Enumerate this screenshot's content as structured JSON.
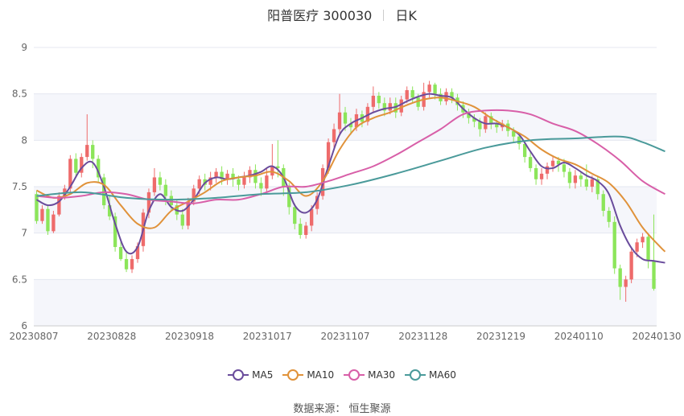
{
  "title": {
    "name": "阳普医疗 300030",
    "period": "日K"
  },
  "source": "数据来源： 恒生聚源",
  "colors": {
    "up": "#ee6b6b",
    "down": "#8ce55a",
    "MA5": "#6a4c9c",
    "MA10": "#e0923a",
    "MA30": "#d85fa8",
    "MA60": "#4a9a9a",
    "band": "#f5f6fb",
    "grid": "#e4e7f0"
  },
  "chart_data": {
    "type": "candlestick",
    "ylim": [
      6,
      9
    ],
    "yticks": [
      "6",
      "6.5",
      "7",
      "7.5",
      "8",
      "8.5",
      "9"
    ],
    "xticks": [
      "20230807",
      "20230828",
      "20230918",
      "20231017",
      "20231107",
      "20231128",
      "20231219",
      "20240110",
      "20240130"
    ],
    "legend": [
      "MA5",
      "MA10",
      "MA30",
      "MA60"
    ],
    "legend_position": "bottom",
    "candles": [
      [
        7.42,
        7.13,
        7.46,
        7.1
      ],
      [
        7.13,
        7.26,
        7.3,
        7.1
      ],
      [
        7.26,
        7.02,
        7.3,
        6.98
      ],
      [
        7.02,
        7.2,
        7.24,
        7.0
      ],
      [
        7.2,
        7.4,
        7.44,
        7.18
      ],
      [
        7.4,
        7.48,
        7.52,
        7.36
      ],
      [
        7.48,
        7.8,
        7.84,
        7.44
      ],
      [
        7.8,
        7.65,
        7.86,
        7.6
      ],
      [
        7.65,
        7.82,
        7.86,
        7.6
      ],
      [
        7.82,
        7.95,
        8.28,
        7.78
      ],
      [
        7.95,
        7.8,
        8.0,
        7.7
      ],
      [
        7.8,
        7.6,
        7.84,
        7.55
      ],
      [
        7.6,
        7.3,
        7.64,
        7.26
      ],
      [
        7.3,
        7.18,
        7.4,
        7.14
      ],
      [
        7.18,
        6.85,
        7.22,
        6.8
      ],
      [
        6.85,
        6.72,
        6.94,
        6.7
      ],
      [
        6.72,
        6.61,
        6.8,
        6.58
      ],
      [
        6.61,
        6.72,
        6.76,
        6.57
      ],
      [
        6.72,
        6.86,
        6.9,
        6.68
      ],
      [
        6.86,
        7.22,
        7.26,
        6.8
      ],
      [
        7.22,
        7.44,
        7.48,
        7.16
      ],
      [
        7.44,
        7.6,
        7.7,
        7.4
      ],
      [
        7.6,
        7.52,
        7.66,
        7.46
      ],
      [
        7.52,
        7.4,
        7.58,
        7.3
      ],
      [
        7.4,
        7.3,
        7.46,
        7.24
      ],
      [
        7.3,
        7.2,
        7.36,
        7.14
      ],
      [
        7.2,
        7.08,
        7.26,
        7.04
      ],
      [
        7.08,
        7.34,
        7.38,
        7.04
      ],
      [
        7.34,
        7.48,
        7.52,
        7.3
      ],
      [
        7.48,
        7.58,
        7.62,
        7.42
      ],
      [
        7.58,
        7.52,
        7.64,
        7.46
      ],
      [
        7.52,
        7.6,
        7.66,
        7.46
      ],
      [
        7.6,
        7.66,
        7.7,
        7.54
      ],
      [
        7.66,
        7.58,
        7.72,
        7.52
      ],
      [
        7.58,
        7.64,
        7.68,
        7.52
      ],
      [
        7.64,
        7.58,
        7.7,
        7.5
      ],
      [
        7.58,
        7.52,
        7.62,
        7.46
      ],
      [
        7.52,
        7.6,
        7.66,
        7.48
      ],
      [
        7.6,
        7.68,
        7.72,
        7.54
      ],
      [
        7.68,
        7.54,
        7.74,
        7.48
      ],
      [
        7.54,
        7.48,
        7.6,
        7.4
      ],
      [
        7.48,
        7.62,
        7.7,
        7.44
      ],
      [
        7.62,
        7.72,
        7.96,
        7.58
      ],
      [
        7.72,
        7.7,
        8.0,
        7.6
      ],
      [
        7.7,
        7.5,
        7.74,
        7.4
      ],
      [
        7.5,
        7.28,
        7.54,
        7.2
      ],
      [
        7.28,
        7.1,
        7.32,
        7.04
      ],
      [
        7.1,
        6.98,
        7.16,
        6.94
      ],
      [
        6.98,
        7.08,
        7.12,
        6.94
      ],
      [
        7.08,
        7.26,
        7.3,
        7.02
      ],
      [
        7.26,
        7.4,
        7.44,
        7.2
      ],
      [
        7.4,
        7.7,
        7.74,
        7.36
      ],
      [
        7.7,
        7.98,
        8.02,
        7.64
      ],
      [
        7.98,
        8.12,
        8.18,
        7.92
      ],
      [
        8.12,
        8.3,
        8.5,
        8.06
      ],
      [
        8.3,
        8.18,
        8.36,
        8.1
      ],
      [
        8.18,
        8.14,
        8.24,
        8.06
      ],
      [
        8.14,
        8.28,
        8.34,
        8.1
      ],
      [
        8.28,
        8.2,
        8.32,
        8.14
      ],
      [
        8.2,
        8.36,
        8.4,
        8.16
      ],
      [
        8.36,
        8.48,
        8.58,
        8.3
      ],
      [
        8.48,
        8.4,
        8.52,
        8.34
      ],
      [
        8.4,
        8.32,
        8.46,
        8.26
      ],
      [
        8.32,
        8.4,
        8.46,
        8.28
      ],
      [
        8.4,
        8.3,
        8.46,
        8.24
      ],
      [
        8.3,
        8.44,
        8.48,
        8.26
      ],
      [
        8.44,
        8.54,
        8.58,
        8.4
      ],
      [
        8.54,
        8.46,
        8.58,
        8.4
      ],
      [
        8.46,
        8.36,
        8.5,
        8.32
      ],
      [
        8.36,
        8.52,
        8.62,
        8.32
      ],
      [
        8.52,
        8.6,
        8.64,
        8.46
      ],
      [
        8.6,
        8.5,
        8.62,
        8.44
      ],
      [
        8.5,
        8.42,
        8.56,
        8.38
      ],
      [
        8.42,
        8.52,
        8.56,
        8.38
      ],
      [
        8.52,
        8.46,
        8.56,
        8.4
      ],
      [
        8.46,
        8.38,
        8.5,
        8.32
      ],
      [
        8.38,
        8.3,
        8.42,
        8.24
      ],
      [
        8.3,
        8.24,
        8.34,
        8.18
      ],
      [
        8.24,
        8.2,
        8.28,
        8.14
      ],
      [
        8.2,
        8.12,
        8.24,
        8.04
      ],
      [
        8.12,
        8.26,
        8.3,
        8.08
      ],
      [
        8.26,
        8.18,
        8.3,
        8.12
      ],
      [
        8.18,
        8.14,
        8.22,
        8.08
      ],
      [
        8.14,
        8.18,
        8.22,
        8.1
      ],
      [
        8.18,
        8.1,
        8.22,
        8.04
      ],
      [
        8.1,
        8.04,
        8.14,
        7.98
      ],
      [
        8.04,
        7.96,
        8.08,
        7.9
      ],
      [
        7.96,
        7.82,
        8.0,
        7.76
      ],
      [
        7.82,
        7.7,
        7.88,
        7.66
      ],
      [
        7.7,
        7.58,
        7.74,
        7.52
      ],
      [
        7.58,
        7.64,
        7.7,
        7.52
      ],
      [
        7.64,
        7.72,
        7.76,
        7.58
      ],
      [
        7.72,
        7.78,
        7.82,
        7.66
      ],
      [
        7.78,
        7.74,
        7.82,
        7.66
      ],
      [
        7.74,
        7.66,
        7.8,
        7.6
      ],
      [
        7.66,
        7.54,
        7.7,
        7.48
      ],
      [
        7.54,
        7.62,
        7.68,
        7.48
      ],
      [
        7.62,
        7.58,
        7.66,
        7.5
      ],
      [
        7.58,
        7.5,
        7.74,
        7.46
      ],
      [
        7.5,
        7.58,
        7.62,
        7.44
      ],
      [
        7.58,
        7.42,
        7.62,
        7.36
      ],
      [
        7.42,
        7.24,
        7.46,
        7.18
      ],
      [
        7.24,
        7.12,
        7.28,
        7.06
      ],
      [
        7.12,
        6.62,
        7.18,
        6.56
      ],
      [
        6.62,
        6.42,
        6.66,
        6.28
      ],
      [
        6.42,
        6.5,
        6.54,
        6.26
      ],
      [
        6.5,
        6.8,
        6.84,
        6.46
      ],
      [
        6.8,
        6.9,
        6.94,
        6.74
      ],
      [
        6.9,
        6.96,
        7.0,
        6.84
      ],
      [
        6.96,
        6.7,
        7.0,
        6.62
      ],
      [
        6.7,
        6.4,
        7.2,
        6.38
      ]
    ],
    "ma_series": [
      {
        "name": "MA5",
        "points": [
          [
            0,
            7.36
          ],
          [
            2,
            7.3
          ],
          [
            4,
            7.34
          ],
          [
            6,
            7.5
          ],
          [
            8,
            7.7
          ],
          [
            10,
            7.76
          ],
          [
            12,
            7.5
          ],
          [
            14,
            7.1
          ],
          [
            16,
            6.8
          ],
          [
            18,
            6.85
          ],
          [
            20,
            7.24
          ],
          [
            22,
            7.42
          ],
          [
            24,
            7.28
          ],
          [
            26,
            7.24
          ],
          [
            28,
            7.36
          ],
          [
            30,
            7.54
          ],
          [
            32,
            7.6
          ],
          [
            34,
            7.58
          ],
          [
            36,
            7.6
          ],
          [
            38,
            7.62
          ],
          [
            40,
            7.66
          ],
          [
            42,
            7.72
          ],
          [
            44,
            7.6
          ],
          [
            46,
            7.3
          ],
          [
            48,
            7.22
          ],
          [
            50,
            7.36
          ],
          [
            52,
            7.72
          ],
          [
            54,
            8.06
          ],
          [
            56,
            8.18
          ],
          [
            58,
            8.24
          ],
          [
            60,
            8.3
          ],
          [
            62,
            8.34
          ],
          [
            64,
            8.36
          ],
          [
            66,
            8.42
          ],
          [
            68,
            8.47
          ],
          [
            70,
            8.5
          ],
          [
            72,
            8.48
          ],
          [
            74,
            8.46
          ],
          [
            76,
            8.34
          ],
          [
            78,
            8.24
          ],
          [
            80,
            8.18
          ],
          [
            82,
            8.18
          ],
          [
            84,
            8.14
          ],
          [
            86,
            8.06
          ],
          [
            88,
            7.88
          ],
          [
            90,
            7.72
          ],
          [
            92,
            7.7
          ],
          [
            94,
            7.76
          ],
          [
            96,
            7.7
          ],
          [
            98,
            7.62
          ],
          [
            100,
            7.56
          ],
          [
            102,
            7.42
          ],
          [
            104,
            7.08
          ],
          [
            106,
            6.84
          ],
          [
            108,
            6.72
          ],
          [
            110,
            6.7
          ],
          [
            112,
            6.68
          ]
        ]
      },
      {
        "name": "MA10",
        "points": [
          [
            0,
            7.46
          ],
          [
            3,
            7.38
          ],
          [
            6,
            7.42
          ],
          [
            9,
            7.54
          ],
          [
            12,
            7.52
          ],
          [
            15,
            7.3
          ],
          [
            18,
            7.1
          ],
          [
            21,
            7.06
          ],
          [
            24,
            7.24
          ],
          [
            27,
            7.34
          ],
          [
            30,
            7.44
          ],
          [
            33,
            7.56
          ],
          [
            36,
            7.6
          ],
          [
            39,
            7.62
          ],
          [
            42,
            7.66
          ],
          [
            45,
            7.56
          ],
          [
            48,
            7.4
          ],
          [
            51,
            7.56
          ],
          [
            54,
            7.9
          ],
          [
            57,
            8.14
          ],
          [
            60,
            8.24
          ],
          [
            63,
            8.3
          ],
          [
            66,
            8.38
          ],
          [
            69,
            8.44
          ],
          [
            72,
            8.46
          ],
          [
            75,
            8.42
          ],
          [
            78,
            8.36
          ],
          [
            81,
            8.24
          ],
          [
            84,
            8.14
          ],
          [
            87,
            8.04
          ],
          [
            90,
            7.9
          ],
          [
            93,
            7.8
          ],
          [
            96,
            7.74
          ],
          [
            99,
            7.64
          ],
          [
            102,
            7.54
          ],
          [
            105,
            7.34
          ],
          [
            108,
            7.06
          ],
          [
            111,
            6.86
          ],
          [
            112,
            6.8
          ]
        ]
      },
      {
        "name": "MA30",
        "points": [
          [
            0,
            7.4
          ],
          [
            4,
            7.38
          ],
          [
            8,
            7.4
          ],
          [
            12,
            7.44
          ],
          [
            16,
            7.42
          ],
          [
            20,
            7.36
          ],
          [
            24,
            7.34
          ],
          [
            28,
            7.32
          ],
          [
            32,
            7.36
          ],
          [
            36,
            7.36
          ],
          [
            40,
            7.42
          ],
          [
            44,
            7.5
          ],
          [
            48,
            7.5
          ],
          [
            52,
            7.56
          ],
          [
            56,
            7.64
          ],
          [
            60,
            7.72
          ],
          [
            64,
            7.84
          ],
          [
            68,
            7.98
          ],
          [
            72,
            8.12
          ],
          [
            76,
            8.28
          ],
          [
            80,
            8.32
          ],
          [
            84,
            8.32
          ],
          [
            88,
            8.28
          ],
          [
            92,
            8.18
          ],
          [
            96,
            8.1
          ],
          [
            100,
            7.96
          ],
          [
            104,
            7.78
          ],
          [
            108,
            7.56
          ],
          [
            112,
            7.42
          ]
        ]
      },
      {
        "name": "MA60",
        "points": [
          [
            0,
            7.4
          ],
          [
            8,
            7.44
          ],
          [
            16,
            7.38
          ],
          [
            24,
            7.36
          ],
          [
            32,
            7.38
          ],
          [
            40,
            7.42
          ],
          [
            48,
            7.44
          ],
          [
            56,
            7.52
          ],
          [
            64,
            7.64
          ],
          [
            72,
            7.78
          ],
          [
            80,
            7.92
          ],
          [
            88,
            8.0
          ],
          [
            96,
            8.02
          ],
          [
            104,
            8.04
          ],
          [
            108,
            7.98
          ],
          [
            112,
            7.88
          ]
        ]
      }
    ]
  }
}
